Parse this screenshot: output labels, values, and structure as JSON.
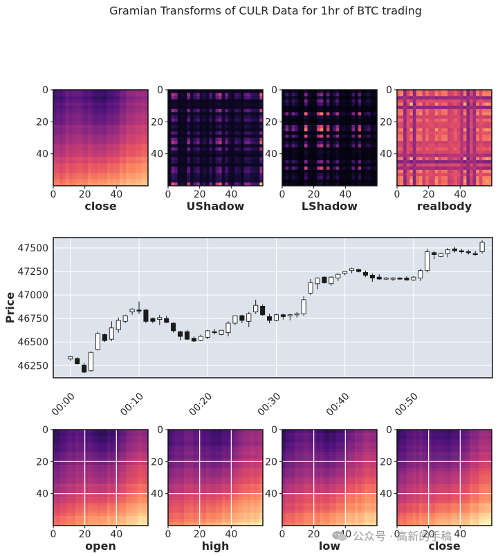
{
  "figure_title": "Gramian Transforms of CULR Data for 1hr of BTC trading",
  "watermark": "公众号 · 高新的手稿",
  "chart_data": [
    {
      "type": "heatmap",
      "id": "top1",
      "xlabel": "close",
      "x_ticks": [
        "0",
        "20",
        "40"
      ],
      "y_ticks": [
        "0",
        "20",
        "40"
      ],
      "size": 60,
      "colormap": "magma",
      "pattern": "smooth",
      "grid": false
    },
    {
      "type": "heatmap",
      "id": "top2",
      "xlabel": "UShadow",
      "x_ticks": [
        "0",
        "20",
        "40"
      ],
      "y_ticks": [
        "0",
        "20",
        "40"
      ],
      "size": 60,
      "colormap": "magma",
      "pattern": "stripes-dark",
      "grid": false
    },
    {
      "type": "heatmap",
      "id": "top3",
      "xlabel": "LShadow",
      "x_ticks": [
        "0",
        "20",
        "40"
      ],
      "y_ticks": [
        "0",
        "20",
        "40"
      ],
      "size": 60,
      "colormap": "magma",
      "pattern": "stripes-darker",
      "grid": false
    },
    {
      "type": "heatmap",
      "id": "top4",
      "xlabel": "realbody",
      "x_ticks": [
        "0",
        "20",
        "40"
      ],
      "y_ticks": [
        "0",
        "20",
        "40"
      ],
      "size": 60,
      "colormap": "magma",
      "pattern": "stripes-bright",
      "grid": false
    },
    {
      "type": "candlestick",
      "id": "price",
      "ylabel": "Price",
      "ylim": [
        46120,
        47610
      ],
      "y_ticks": [
        46250,
        46500,
        46750,
        47000,
        47250,
        47500
      ],
      "x_ticks": [
        "00:00",
        "00:10",
        "00:20",
        "00:30",
        "00:40",
        "00:50"
      ],
      "x_tick_minutes": [
        0,
        10,
        20,
        30,
        40,
        50
      ],
      "xlim_minutes": [
        -2.5,
        61.5
      ],
      "grid": true,
      "candles": [
        {
          "o": 46320,
          "h": 46355,
          "l": 46300,
          "c": 46345
        },
        {
          "o": 46325,
          "h": 46340,
          "l": 46260,
          "c": 46270
        },
        {
          "o": 46255,
          "h": 46280,
          "l": 46170,
          "c": 46180
        },
        {
          "o": 46195,
          "h": 46400,
          "l": 46185,
          "c": 46390
        },
        {
          "o": 46420,
          "h": 46610,
          "l": 46410,
          "c": 46590
        },
        {
          "o": 46580,
          "h": 46590,
          "l": 46500,
          "c": 46515
        },
        {
          "o": 46530,
          "h": 46720,
          "l": 46510,
          "c": 46650
        },
        {
          "o": 46630,
          "h": 46760,
          "l": 46600,
          "c": 46730
        },
        {
          "o": 46720,
          "h": 46790,
          "l": 46700,
          "c": 46780
        },
        {
          "o": 46820,
          "h": 46860,
          "l": 46790,
          "c": 46850
        },
        {
          "o": 46840,
          "h": 46930,
          "l": 46800,
          "c": 46830
        },
        {
          "o": 46840,
          "h": 46850,
          "l": 46700,
          "c": 46720
        },
        {
          "o": 46750,
          "h": 46760,
          "l": 46700,
          "c": 46720
        },
        {
          "o": 46740,
          "h": 46790,
          "l": 46680,
          "c": 46760
        },
        {
          "o": 46750,
          "h": 46780,
          "l": 46700,
          "c": 46710
        },
        {
          "o": 46700,
          "h": 46710,
          "l": 46600,
          "c": 46620
        },
        {
          "o": 46610,
          "h": 46620,
          "l": 46520,
          "c": 46560
        },
        {
          "o": 46610,
          "h": 46630,
          "l": 46520,
          "c": 46530
        },
        {
          "o": 46540,
          "h": 46560,
          "l": 46500,
          "c": 46510
        },
        {
          "o": 46520,
          "h": 46580,
          "l": 46510,
          "c": 46560
        },
        {
          "o": 46550,
          "h": 46630,
          "l": 46530,
          "c": 46620
        },
        {
          "o": 46610,
          "h": 46640,
          "l": 46580,
          "c": 46600
        },
        {
          "o": 46580,
          "h": 46630,
          "l": 46570,
          "c": 46625
        },
        {
          "o": 46600,
          "h": 46720,
          "l": 46560,
          "c": 46700
        },
        {
          "o": 46700,
          "h": 46780,
          "l": 46680,
          "c": 46780
        },
        {
          "o": 46780,
          "h": 46790,
          "l": 46700,
          "c": 46730
        },
        {
          "o": 46720,
          "h": 46820,
          "l": 46660,
          "c": 46800
        },
        {
          "o": 46820,
          "h": 46950,
          "l": 46800,
          "c": 46890
        },
        {
          "o": 46880,
          "h": 46900,
          "l": 46780,
          "c": 46790
        },
        {
          "o": 46770,
          "h": 46800,
          "l": 46700,
          "c": 46730
        },
        {
          "o": 46730,
          "h": 46800,
          "l": 46720,
          "c": 46790
        },
        {
          "o": 46790,
          "h": 46800,
          "l": 46740,
          "c": 46770
        },
        {
          "o": 46780,
          "h": 46800,
          "l": 46730,
          "c": 46790
        },
        {
          "o": 46790,
          "h": 46820,
          "l": 46760,
          "c": 46800
        },
        {
          "o": 46800,
          "h": 46990,
          "l": 46780,
          "c": 46950
        },
        {
          "o": 47020,
          "h": 47170,
          "l": 47000,
          "c": 47130
        },
        {
          "o": 47120,
          "h": 47190,
          "l": 47060,
          "c": 47180
        },
        {
          "o": 47190,
          "h": 47200,
          "l": 47120,
          "c": 47130
        },
        {
          "o": 47120,
          "h": 47200,
          "l": 47100,
          "c": 47190
        },
        {
          "o": 47180,
          "h": 47230,
          "l": 47150,
          "c": 47220
        },
        {
          "o": 47230,
          "h": 47250,
          "l": 47210,
          "c": 47250
        },
        {
          "o": 47260,
          "h": 47290,
          "l": 47230,
          "c": 47280
        },
        {
          "o": 47270,
          "h": 47280,
          "l": 47240,
          "c": 47250
        },
        {
          "o": 47240,
          "h": 47260,
          "l": 47190,
          "c": 47210
        },
        {
          "o": 47210,
          "h": 47230,
          "l": 47140,
          "c": 47180
        },
        {
          "o": 47190,
          "h": 47220,
          "l": 47160,
          "c": 47170
        },
        {
          "o": 47170,
          "h": 47190,
          "l": 47160,
          "c": 47180
        },
        {
          "o": 47170,
          "h": 47190,
          "l": 47150,
          "c": 47180
        },
        {
          "o": 47180,
          "h": 47190,
          "l": 47160,
          "c": 47170
        },
        {
          "o": 47180,
          "h": 47200,
          "l": 47150,
          "c": 47160
        },
        {
          "o": 47160,
          "h": 47200,
          "l": 47150,
          "c": 47190
        },
        {
          "o": 47180,
          "h": 47280,
          "l": 47150,
          "c": 47260
        },
        {
          "o": 47260,
          "h": 47490,
          "l": 47240,
          "c": 47460
        },
        {
          "o": 47450,
          "h": 47470,
          "l": 47380,
          "c": 47430
        },
        {
          "o": 47410,
          "h": 47450,
          "l": 47400,
          "c": 47440
        },
        {
          "o": 47440,
          "h": 47500,
          "l": 47400,
          "c": 47480
        },
        {
          "o": 47490,
          "h": 47510,
          "l": 47450,
          "c": 47470
        },
        {
          "o": 47470,
          "h": 47490,
          "l": 47440,
          "c": 47460
        },
        {
          "o": 47460,
          "h": 47480,
          "l": 47430,
          "c": 47450
        },
        {
          "o": 47440,
          "h": 47470,
          "l": 47420,
          "c": 47435
        },
        {
          "o": 47460,
          "h": 47580,
          "l": 47440,
          "c": 47560
        }
      ]
    },
    {
      "type": "heatmap",
      "id": "bot1",
      "xlabel": "open",
      "x_ticks": [
        "0",
        "20",
        "40"
      ],
      "y_ticks": [
        "0",
        "20",
        "40"
      ],
      "size": 60,
      "colormap": "magma",
      "pattern": "smooth-bright",
      "grid": true
    },
    {
      "type": "heatmap",
      "id": "bot2",
      "xlabel": "high",
      "x_ticks": [
        "0",
        "20",
        "40"
      ],
      "y_ticks": [
        "0",
        "20",
        "40"
      ],
      "size": 60,
      "colormap": "magma",
      "pattern": "smooth-bright",
      "grid": true
    },
    {
      "type": "heatmap",
      "id": "bot3",
      "xlabel": "low",
      "x_ticks": [
        "0",
        "20",
        "40"
      ],
      "y_ticks": [
        "0",
        "20",
        "40"
      ],
      "size": 60,
      "colormap": "magma",
      "pattern": "smooth-bright",
      "grid": true
    },
    {
      "type": "heatmap",
      "id": "bot4",
      "xlabel": "close",
      "x_ticks": [
        "0",
        "20",
        "40"
      ],
      "y_ticks": [
        "0",
        "20",
        "40"
      ],
      "size": 60,
      "colormap": "magma",
      "pattern": "smooth-bright",
      "grid": true
    }
  ],
  "colors": {
    "candle_up_fill": "#ffffff",
    "candle_down_fill": "#1a1a1a",
    "candle_edge": "#1a1a1a",
    "plot_bg": "#dde3ec",
    "grid": "#ffffff",
    "frame": "#111111"
  }
}
